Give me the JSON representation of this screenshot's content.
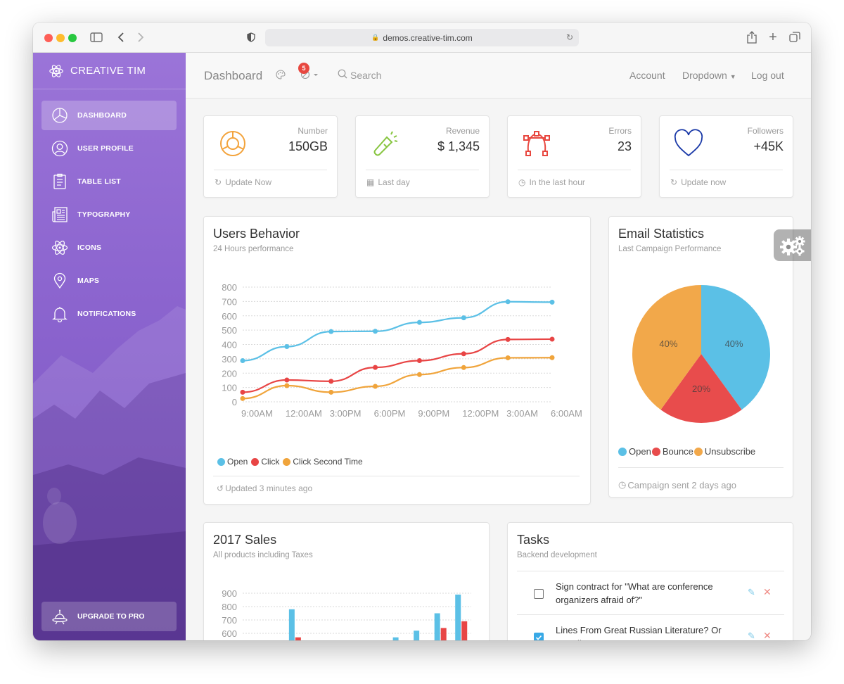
{
  "browser": {
    "url": "demos.creative-tim.com"
  },
  "sidebar": {
    "brand": "CREATIVE TIM",
    "items": [
      {
        "label": "DASHBOARD",
        "icon": "chart-pie-icon",
        "active": true
      },
      {
        "label": "USER PROFILE",
        "icon": "user-icon",
        "active": false
      },
      {
        "label": "TABLE LIST",
        "icon": "clipboard-icon",
        "active": false
      },
      {
        "label": "TYPOGRAPHY",
        "icon": "newspaper-icon",
        "active": false
      },
      {
        "label": "ICONS",
        "icon": "atom-icon",
        "active": false
      },
      {
        "label": "MAPS",
        "icon": "map-pin-icon",
        "active": false
      },
      {
        "label": "NOTIFICATIONS",
        "icon": "bell-icon",
        "active": false
      }
    ],
    "upgrade": "UPGRADE TO PRO"
  },
  "topnav": {
    "title": "Dashboard",
    "badge": "5",
    "search": "Search",
    "links": {
      "account": "Account",
      "dropdown": "Dropdown",
      "logout": "Log out"
    }
  },
  "stats": [
    {
      "label": "Number",
      "value": "150GB",
      "footer": "Update Now",
      "icon": "chart-icon",
      "color": "#f3a33b"
    },
    {
      "label": "Revenue",
      "value": "$ 1,345",
      "footer": "Last day",
      "icon": "flashlight-icon",
      "color": "#87c540"
    },
    {
      "label": "Errors",
      "value": "23",
      "footer": "In the last hour",
      "icon": "vector-icon",
      "color": "#e8473f"
    },
    {
      "label": "Followers",
      "value": "+45K",
      "footer": "Update now",
      "icon": "heart-icon",
      "color": "#1b3aa8"
    }
  ],
  "users_behavior": {
    "title": "Users Behavior",
    "subtitle": "24 Hours performance",
    "footer": "Updated 3 minutes ago",
    "chart_data": {
      "type": "line",
      "x": [
        "9:00AM",
        "12:00AM",
        "3:00PM",
        "6:00PM",
        "9:00PM",
        "12:00PM",
        "3:00AM",
        "6:00AM"
      ],
      "series": [
        {
          "name": "Open",
          "color": "#5bc0e6",
          "values": [
            287,
            385,
            490,
            492,
            554,
            586,
            698,
            695
          ]
        },
        {
          "name": "Click",
          "color": "#e84545",
          "values": [
            67,
            152,
            143,
            240,
            287,
            335,
            435,
            437
          ]
        },
        {
          "name": "Click Second Time",
          "color": "#f0a43b",
          "values": [
            23,
            113,
            67,
            108,
            190,
            239,
            307,
            308
          ]
        }
      ],
      "ylim": [
        0,
        800
      ],
      "yticks": [
        "0",
        "100",
        "200",
        "300",
        "400",
        "500",
        "600",
        "700",
        "800"
      ]
    }
  },
  "email_stats": {
    "title": "Email Statistics",
    "subtitle": "Last Campaign Performance",
    "footer": "Campaign sent 2 days ago",
    "chart_data": {
      "type": "pie",
      "labels": [
        "Open",
        "Bounce",
        "Unsubscribe"
      ],
      "values": [
        40,
        20,
        40
      ],
      "value_labels": [
        "40%",
        "20%",
        "40%"
      ],
      "colors": [
        "#5bc0e6",
        "#e84c4c",
        "#f2a84a"
      ]
    }
  },
  "sales": {
    "title": "2017 Sales",
    "subtitle": "All products including Taxes",
    "chart_data": {
      "type": "bar",
      "ylim": [
        0,
        900
      ],
      "yticks_visible": [
        "600",
        "700",
        "800",
        "900"
      ],
      "series": [
        {
          "name": "",
          "color": "#5bc0e6",
          "values": [
            0,
            0,
            780,
            0,
            0,
            0,
            0,
            570,
            620,
            750,
            890
          ]
        },
        {
          "name": "",
          "color": "#e84545",
          "values": [
            0,
            0,
            570,
            0,
            0,
            0,
            0,
            0,
            0,
            640,
            690
          ]
        }
      ]
    }
  },
  "tasks": {
    "title": "Tasks",
    "subtitle": "Backend development",
    "items": [
      {
        "text": "Sign contract for \"What are conference organizers afraid of?\"",
        "checked": false
      },
      {
        "text": "Lines From Great Russian Literature? Or E-mails From My Boss?",
        "checked": true
      }
    ]
  }
}
